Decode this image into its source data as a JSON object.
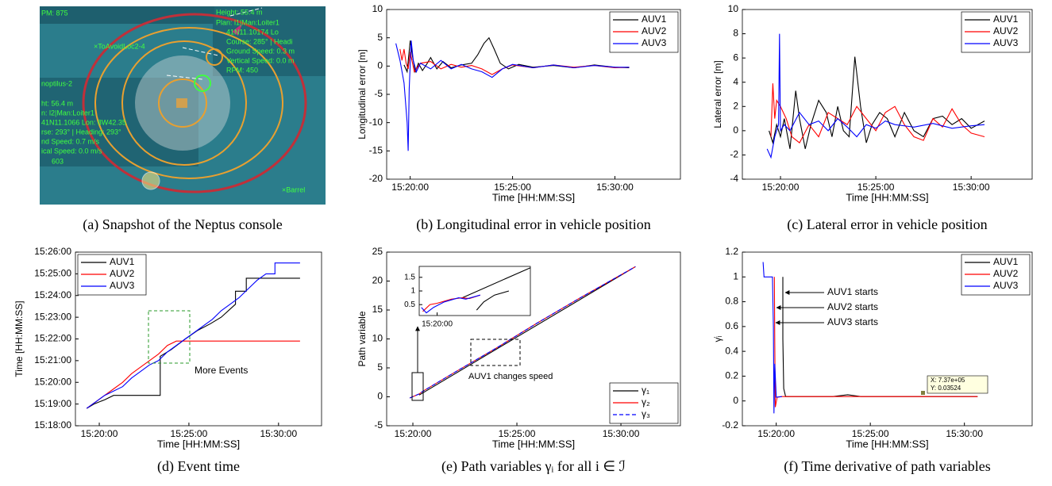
{
  "image": {
    "caption": "(a) Snapshot of the Neptus console",
    "labels": [
      "PM: 875",
      "Height: 55.4 m",
      "Plan: l1|Man:Loiter1",
      "41N11.10174 Lo",
      "Course: 285° | Headi",
      "Ground Speed: 0.3 m",
      "Vertical Speed: 0.0 m",
      "RPM: 450",
      "×ToAvoidLoc2-4",
      "noptilus-2",
      "ht: 56.4 m",
      "n: l2|Man:Loiter1",
      "41N11.1066 Lon: 8W42.35",
      "rse: 293° | Heading: 293°",
      "nd Speed: 0.7 m/s",
      "ical Speed: 0.0 m/s",
      "603",
      "×Barrel"
    ]
  },
  "chart_data": [
    {
      "type": "line",
      "caption": "(b) Longitudinal error in vehicle position",
      "xlabel": "Time [HH:MM:SS]",
      "ylabel": "Longitudinal error [m]",
      "xlim": [
        18.85,
        33.2
      ],
      "xticks": [
        {
          "value": 20,
          "label": "15:20:00"
        },
        {
          "value": 25,
          "label": "15:25:00"
        },
        {
          "value": 30,
          "label": "15:30:00"
        }
      ],
      "ylim": [
        -20,
        10
      ],
      "yticks": [
        -20,
        -15,
        -10,
        -5,
        0,
        5,
        10
      ],
      "legend": "upper right",
      "series": [
        {
          "name": "AUV1",
          "color": "#000000",
          "x": [
            19.7,
            19.85,
            20.0,
            20.1,
            20.25,
            20.4,
            20.6,
            20.8,
            21.0,
            21.3,
            21.6,
            22.0,
            22.5,
            23.0,
            23.3,
            23.6,
            23.85,
            24.1,
            24.4,
            24.8,
            25.3,
            26,
            27,
            28,
            29,
            30,
            30.7
          ],
          "values": [
            0.2,
            -1,
            4.5,
            2,
            -1,
            0.5,
            -0.8,
            0.3,
            1.5,
            -0.5,
            0.8,
            -0.3,
            0.2,
            0.5,
            2,
            4,
            5,
            3,
            0.5,
            -0.5,
            0.3,
            -0.2,
            0.1,
            -0.3,
            0.2,
            -0.2,
            -0.3
          ]
        },
        {
          "name": "AUV2",
          "color": "#ff0000",
          "x": [
            19.5,
            19.6,
            19.7,
            19.8,
            19.9,
            20.0,
            20.2,
            20.5,
            21,
            21.5,
            22,
            22.5,
            23,
            23.5,
            24,
            24.5,
            25,
            26,
            27,
            28,
            29,
            30,
            30.7
          ],
          "values": [
            3,
            1,
            3,
            0.5,
            -0.5,
            2.5,
            -1,
            0.5,
            0.8,
            -0.5,
            0.3,
            -0.2,
            0.1,
            -0.5,
            -1.5,
            -0.5,
            0.2,
            -0.3,
            0.2,
            -0.2,
            0.1,
            -0.3,
            -0.2
          ]
        },
        {
          "name": "AUV3",
          "color": "#0000ff",
          "x": [
            19.3,
            19.5,
            19.7,
            19.85,
            19.9,
            19.95,
            20.05,
            20.15,
            20.3,
            20.5,
            21,
            21.5,
            22,
            22.5,
            23,
            23.5,
            24,
            24.5,
            25,
            26,
            27,
            28,
            29,
            30,
            30.7
          ],
          "values": [
            4,
            1,
            -3,
            -10,
            -15,
            -4,
            4.5,
            1,
            -1,
            0.5,
            -0.5,
            1,
            -0.5,
            0.3,
            -0.5,
            -1,
            -2,
            -0.5,
            0.3,
            -0.3,
            0.2,
            -0.3,
            0.1,
            -0.2,
            -0.2
          ]
        }
      ]
    },
    {
      "type": "line",
      "caption": "(c) Lateral error in vehicle position",
      "xlabel": "Time [HH:MM:SS]",
      "ylabel": "Lateral error [m]",
      "xlim": [
        18.0,
        33.2
      ],
      "xticks": [
        {
          "value": 20,
          "label": "15:20:00"
        },
        {
          "value": 25,
          "label": "15:25:00"
        },
        {
          "value": 30,
          "label": "15:30:00"
        }
      ],
      "ylim": [
        -4,
        10
      ],
      "yticks": [
        -4,
        -2,
        0,
        2,
        4,
        6,
        8,
        10
      ],
      "legend": "upper right",
      "series": [
        {
          "name": "AUV1",
          "color": "#000000",
          "x": [
            19.4,
            19.6,
            19.8,
            20.0,
            20.2,
            20.5,
            20.8,
            21.0,
            21.3,
            21.6,
            22.0,
            22.4,
            22.7,
            23.0,
            23.3,
            23.6,
            23.9,
            24.2,
            24.5,
            24.8,
            25.2,
            25.6,
            26,
            26.5,
            27,
            27.5,
            28,
            28.5,
            29,
            29.5,
            30,
            30.7
          ],
          "values": [
            0,
            -1,
            0.5,
            -0.5,
            1,
            -1.5,
            3.3,
            1,
            -1.5,
            0.5,
            2.5,
            1.5,
            -0.5,
            2,
            0,
            -0.5,
            6.1,
            2,
            -1,
            0.5,
            1.5,
            1,
            -0.5,
            1.5,
            0,
            -0.5,
            1,
            1.2,
            0.5,
            1,
            0.2,
            0.8
          ]
        },
        {
          "name": "AUV2",
          "color": "#ff0000",
          "x": [
            19.5,
            19.6,
            19.7,
            19.8,
            20.0,
            20.3,
            20.6,
            21,
            21.5,
            22,
            22.5,
            23,
            23.5,
            24,
            24.5,
            25,
            25.5,
            26,
            26.5,
            27,
            27.5,
            28,
            28.5,
            29,
            29.5,
            30,
            30.7
          ],
          "values": [
            -0.5,
            3.9,
            1,
            2.5,
            2,
            1,
            -0.5,
            -1,
            0.5,
            -0.5,
            1.5,
            1,
            0.5,
            2,
            1,
            0,
            1.5,
            2,
            0.5,
            -0.5,
            -0.8,
            1,
            0.3,
            1.8,
            0.5,
            -0.2,
            -0.5
          ]
        },
        {
          "name": "AUV3",
          "color": "#0000ff",
          "x": [
            19.3,
            19.5,
            19.7,
            19.9,
            19.95,
            20.0,
            20.2,
            20.5,
            21,
            21.5,
            22,
            22.5,
            23,
            23.5,
            24,
            24.5,
            25,
            25.5,
            26,
            27,
            28,
            29,
            30,
            30.7
          ],
          "values": [
            -1.5,
            -2.2,
            -0.5,
            0.5,
            8,
            0,
            0.5,
            0,
            1.5,
            0.5,
            0.8,
            0,
            1,
            0.3,
            -0.5,
            0.5,
            0.2,
            0.8,
            0.5,
            0.3,
            0.6,
            0.2,
            0.4,
            0.5
          ]
        }
      ]
    },
    {
      "type": "line",
      "caption": "(d) Event time",
      "xlabel": "Time [HH:MM:SS]",
      "ylabel": "Time [HH:MM:SS]",
      "xlim": [
        18.67,
        32.4
      ],
      "xticks": [
        {
          "value": 20,
          "label": "15:20:00"
        },
        {
          "value": 25,
          "label": "15:25:00"
        },
        {
          "value": 30,
          "label": "15:30:00"
        }
      ],
      "ylim": [
        18,
        26
      ],
      "yticks": [
        {
          "value": 18,
          "label": "15:18:00"
        },
        {
          "value": 19,
          "label": "15:19:00"
        },
        {
          "value": 20,
          "label": "15:20:00"
        },
        {
          "value": 21,
          "label": "15:21:00"
        },
        {
          "value": 22,
          "label": "15:22:00"
        },
        {
          "value": 23,
          "label": "15:23:00"
        },
        {
          "value": 24,
          "label": "15:24:00"
        },
        {
          "value": 25,
          "label": "15:25:00"
        },
        {
          "value": 26,
          "label": "15:26:00"
        }
      ],
      "legend": "upper left",
      "annotations": [
        "More Events"
      ],
      "series": [
        {
          "name": "AUV1",
          "color": "#000000",
          "x": [
            19.3,
            19.7,
            20.3,
            20.8,
            21.5,
            22.3,
            23.4,
            23.4,
            24.0,
            24.8,
            25.5,
            26.2,
            26.8,
            27.6,
            27.6,
            28.2,
            28.2,
            31.2
          ],
          "values": [
            18.8,
            19.0,
            19.2,
            19.4,
            19.4,
            19.4,
            19.4,
            21.2,
            21.5,
            22.0,
            22.4,
            22.7,
            23.0,
            23.6,
            24.2,
            24.2,
            24.8,
            24.8
          ]
        },
        {
          "name": "AUV2",
          "color": "#ff0000",
          "x": [
            19.3,
            19.8,
            20.3,
            20.8,
            21.3,
            21.8,
            22.3,
            22.8,
            23.3,
            23.8,
            24.3,
            24.8,
            31.2
          ],
          "values": [
            18.8,
            19.1,
            19.4,
            19.7,
            20.0,
            20.4,
            20.7,
            21.0,
            21.3,
            21.7,
            21.9,
            21.9,
            21.9
          ]
        },
        {
          "name": "AUV3",
          "color": "#0000ff",
          "x": [
            19.3,
            19.8,
            20.3,
            20.8,
            21.3,
            21.8,
            22.3,
            22.8,
            23.3,
            23.8,
            24.3,
            24.8,
            25.3,
            25.8,
            26.3,
            26.8,
            27.3,
            27.8,
            28.3,
            28.8,
            29.3,
            29.8,
            29.8,
            31.2
          ],
          "values": [
            18.8,
            19.1,
            19.4,
            19.6,
            19.8,
            20.2,
            20.5,
            20.8,
            21.0,
            21.4,
            21.7,
            22.0,
            22.3,
            22.6,
            22.9,
            23.3,
            23.6,
            23.9,
            24.3,
            24.7,
            25.0,
            25.0,
            25.5,
            25.5
          ]
        }
      ]
    },
    {
      "type": "line",
      "caption": "(e) Path variables γᵢ for all i ∈ ℐ",
      "xlabel": "Time [HH:MM:SS]",
      "ylabel": "Path variable",
      "xlim": [
        18.74,
        32.86
      ],
      "xticks": [
        {
          "value": 20,
          "label": "15:20:00"
        },
        {
          "value": 25,
          "label": "15:25:00"
        },
        {
          "value": 30,
          "label": "15:30:00"
        }
      ],
      "ylim": [
        -5,
        25
      ],
      "yticks": [
        -5,
        0,
        5,
        10,
        15,
        20,
        25
      ],
      "legend": "lower right",
      "annotations": [
        "AUV1 changes speed"
      ],
      "series": [
        {
          "name": "γ₁",
          "color": "#000000",
          "x": [
            20.3,
            30.7
          ],
          "values": [
            0.3,
            22.5
          ]
        },
        {
          "name": "γ₂",
          "color": "#ff0000",
          "x": [
            19.85,
            20.3,
            20.5,
            22,
            24,
            26,
            28,
            30.7
          ],
          "values": [
            -0.2,
            0.5,
            1.0,
            4.2,
            8.4,
            12.8,
            17,
            22.5
          ]
        },
        {
          "name": "γ₃",
          "color": "#0000ff",
          "dash": true,
          "x": [
            19.85,
            20.3,
            20.5,
            22,
            24,
            26,
            28,
            30.7
          ],
          "values": [
            -0.2,
            0.5,
            1.0,
            4.2,
            8.4,
            12.8,
            17,
            22.5
          ]
        }
      ]
    },
    {
      "type": "line",
      "xlim": [
        19.75,
        21.3
      ],
      "xticks": [
        {
          "value": 20,
          "label": "15:20:00"
        }
      ],
      "ylim": [
        0.1,
        1.9
      ],
      "yticks": [
        0.5,
        1,
        1.5
      ],
      "series": [
        {
          "color": "#000000",
          "x": [
            20.35,
            21.3
          ],
          "values": [
            0.75,
            1.85
          ]
        },
        {
          "color": "#000000",
          "x": [
            20.55,
            20.65,
            20.8,
            21.0
          ],
          "values": [
            0.3,
            0.6,
            0.85,
            1.0
          ]
        },
        {
          "color": "#ff0000",
          "x": [
            19.8,
            19.9,
            20.0,
            20.2,
            20.35,
            20.45,
            20.6
          ],
          "values": [
            0.25,
            0.5,
            0.55,
            0.7,
            0.75,
            0.72,
            0.85
          ]
        },
        {
          "color": "#0000ff",
          "x": [
            19.78,
            19.85,
            19.95,
            20.1,
            20.3,
            20.4,
            20.6
          ],
          "values": [
            0.4,
            0.2,
            0.4,
            0.6,
            0.75,
            0.7,
            0.85
          ]
        }
      ]
    },
    {
      "type": "line",
      "caption": "(f) Time derivative of path variables",
      "xlabel": "Time [HH:MM:SS]",
      "ylabel": "γ̇ᵢ",
      "xlim": [
        18.2,
        33.6
      ],
      "xticks": [
        {
          "value": 20,
          "label": "15:20:00"
        },
        {
          "value": 25,
          "label": "15:25:00"
        },
        {
          "value": 30,
          "label": "15:30:00"
        }
      ],
      "ylim": [
        -0.2,
        1.2
      ],
      "yticks": [
        -0.2,
        0,
        0.2,
        0.4,
        0.6,
        0.8,
        1,
        1.2
      ],
      "legend": "upper right",
      "annotations": [
        "AUV1 starts",
        "AUV2 starts",
        "AUV3 starts",
        "X: 7.37e+05",
        "Y: 0.03524"
      ],
      "series": [
        {
          "name": "AUV1",
          "color": "#000000",
          "x": [
            20.35,
            20.35,
            20.4,
            20.5,
            23.0,
            23.8,
            24.5,
            30.7
          ],
          "values": [
            1,
            0.5,
            0.1,
            0.035,
            0.035,
            0.05,
            0.035,
            0.035
          ]
        },
        {
          "name": "AUV2",
          "color": "#ff0000",
          "x": [
            19.9,
            19.92,
            19.95,
            20.05,
            20.3,
            30.7
          ],
          "values": [
            1,
            0.5,
            -0.05,
            0.03,
            0.035,
            0.035
          ]
        },
        {
          "name": "AUV3",
          "color": "#0000ff",
          "x": [
            19.3,
            19.35,
            19.8,
            19.85,
            19.88,
            19.92,
            20.0,
            20.3
          ],
          "values": [
            1.12,
            1.0,
            1.0,
            0.6,
            -0.1,
            0.3,
            0.03,
            0.035
          ]
        }
      ]
    }
  ]
}
